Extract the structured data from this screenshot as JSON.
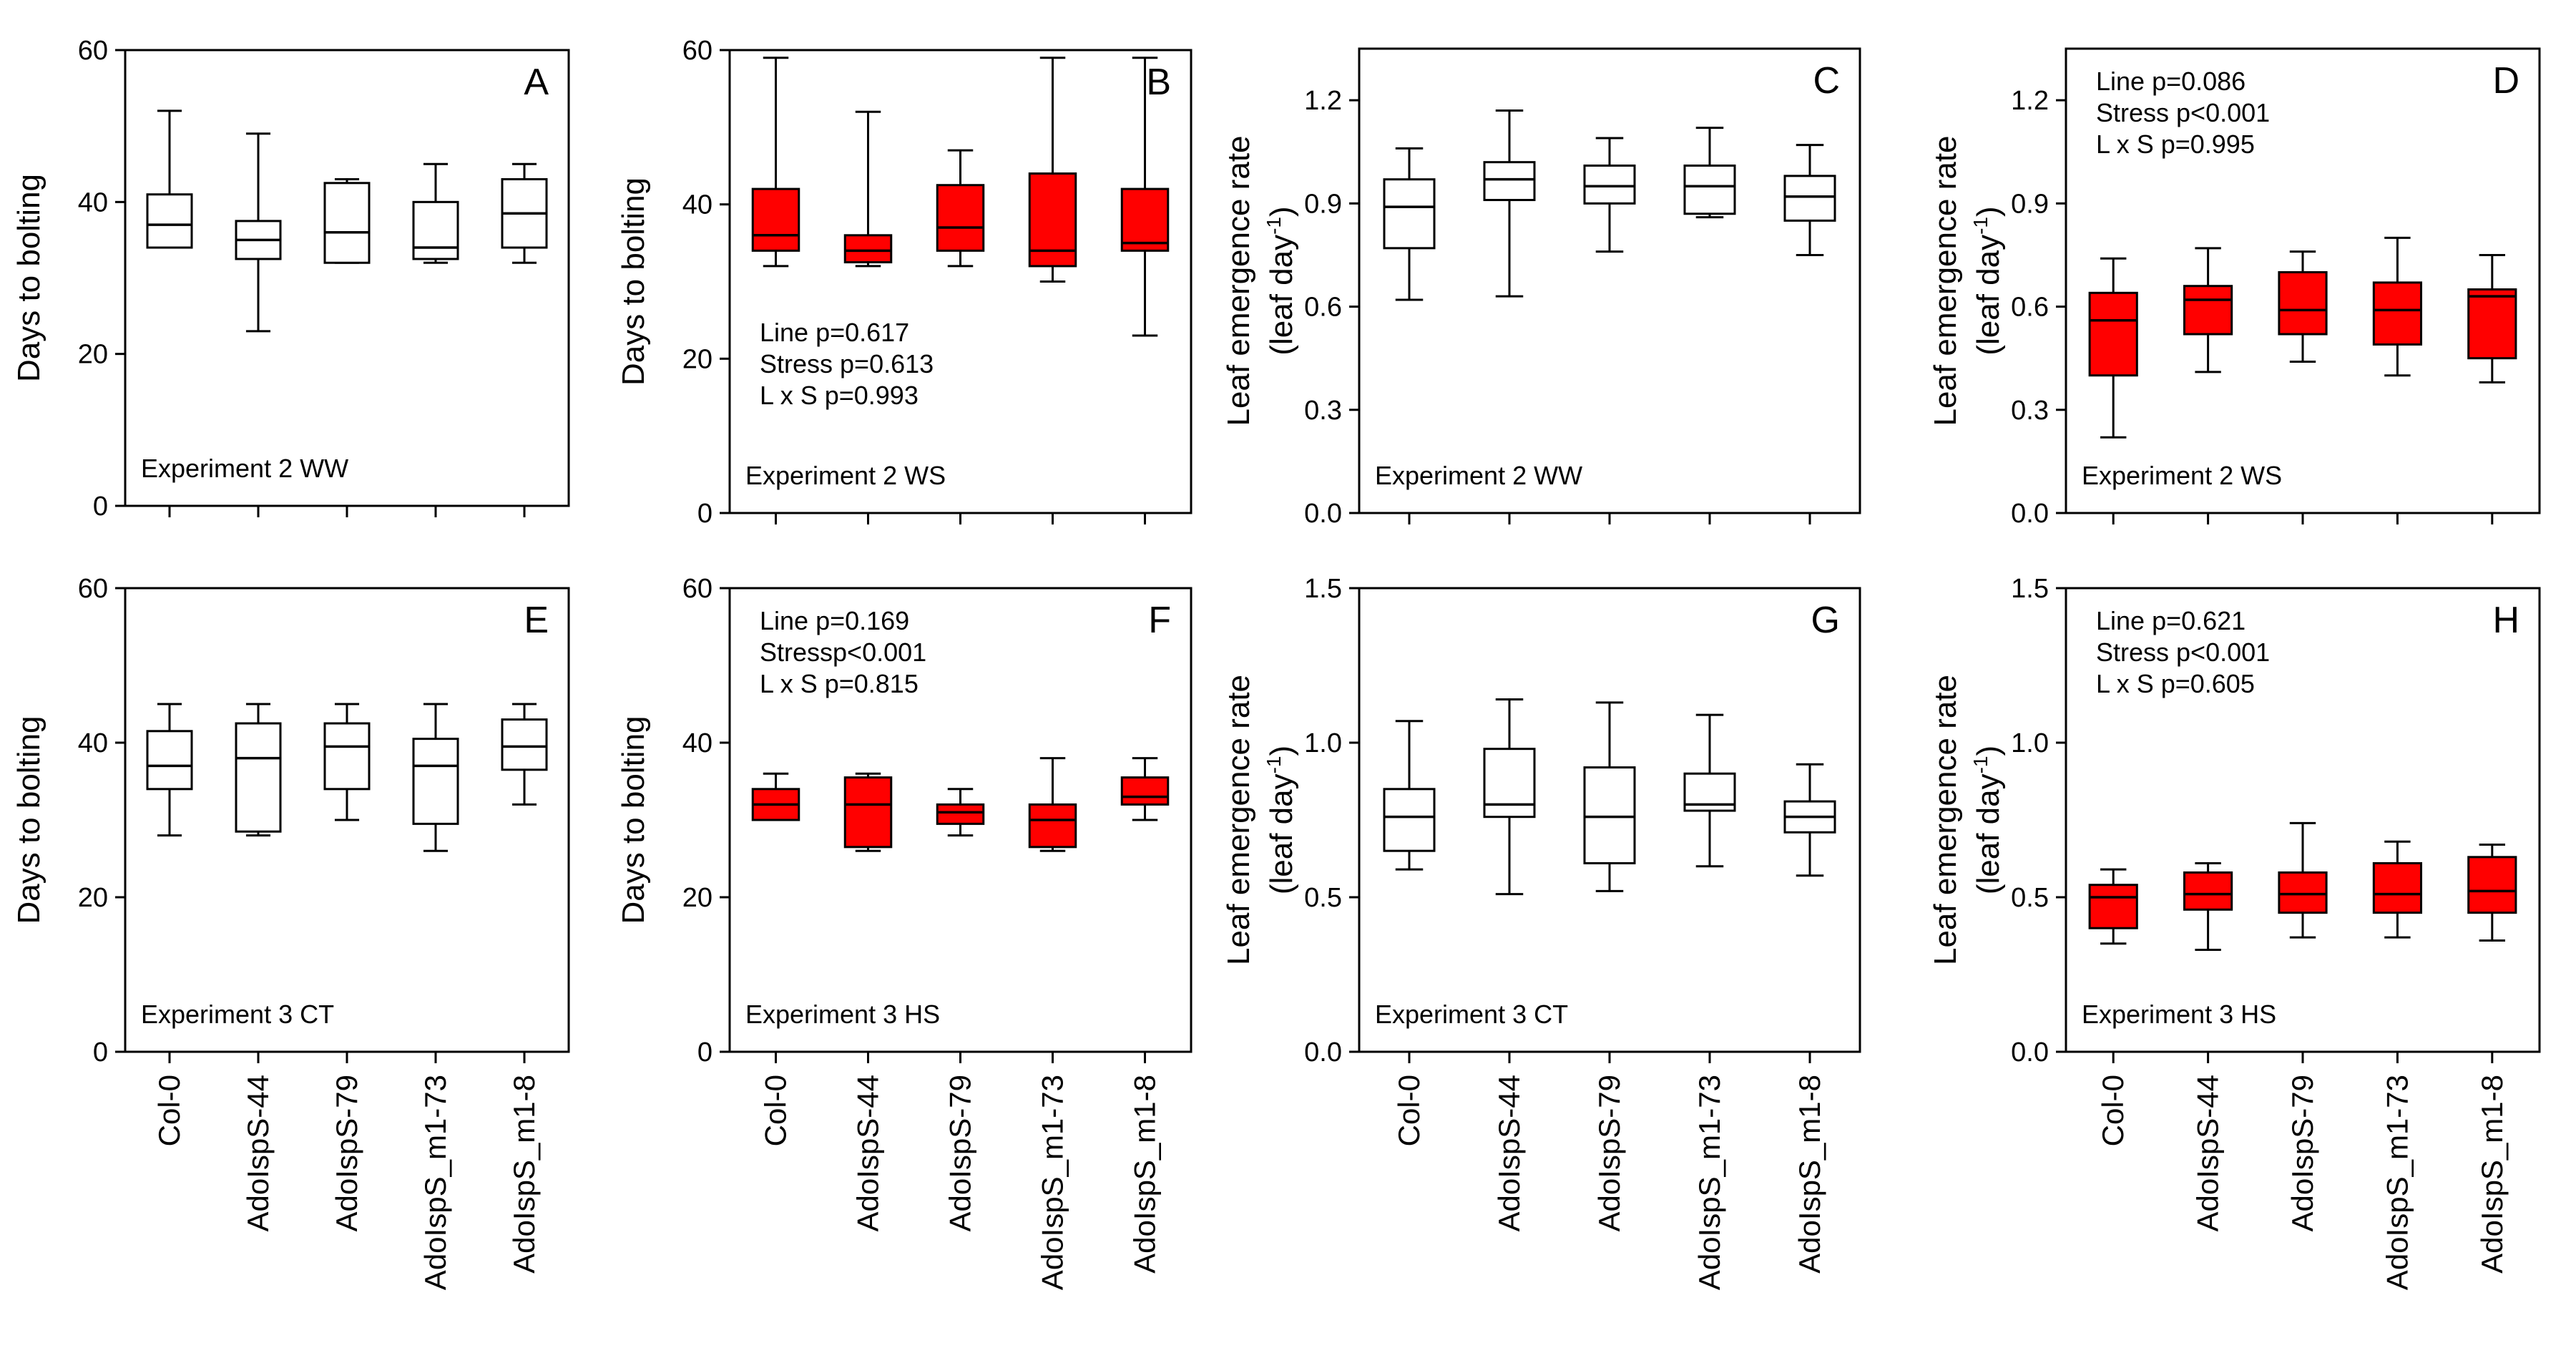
{
  "categories": [
    "Col-0",
    "AdoIspS-44",
    "AdoIspS-79",
    "AdoIspS_m1-73",
    "AdoIspS_m1-8"
  ],
  "colors": {
    "stress_fill": "#ff0000",
    "control_fill": "#ffffff",
    "line": "#000000"
  },
  "chart_data": [
    {
      "type": "box",
      "panel": "A",
      "letter": "A",
      "ylabel": "Days to bolting",
      "ylabel2": "",
      "ylim": [
        0,
        60
      ],
      "yticks": [
        0,
        20,
        40,
        60
      ],
      "yticklabels": [
        "0",
        "20",
        "40",
        "60"
      ],
      "caption": "Experiment 2 WW",
      "stats": [],
      "stats_position": "none",
      "fill": "white",
      "boxes": [
        {
          "category": "Col-0",
          "min": 34,
          "q1": 34,
          "median": 37,
          "q3": 41,
          "max": 52
        },
        {
          "category": "AdoIspS-44",
          "min": 23,
          "q1": 32.5,
          "median": 35,
          "q3": 37.5,
          "max": 49
        },
        {
          "category": "AdoIspS-79",
          "min": 32,
          "q1": 32,
          "median": 36,
          "q3": 42.5,
          "max": 43
        },
        {
          "category": "AdoIspS_m1-73",
          "min": 32,
          "q1": 32.5,
          "median": 34,
          "q3": 40,
          "max": 45
        },
        {
          "category": "AdoIspS_m1-8",
          "min": 32,
          "q1": 34,
          "median": 38.5,
          "q3": 43,
          "max": 45
        }
      ]
    },
    {
      "type": "box",
      "panel": "B",
      "letter": "B",
      "ylabel": "Days to bolting",
      "ylabel2": "",
      "ylim": [
        0,
        60
      ],
      "yticks": [
        0,
        20,
        40,
        60
      ],
      "yticklabels": [
        "0",
        "20",
        "40",
        "60"
      ],
      "caption": "Experiment 2 WS",
      "stats": [
        "Line p=0.617",
        "Stress p=0.613",
        "L x S p=0.993"
      ],
      "stats_position": "bottom-left",
      "fill": "red",
      "boxes": [
        {
          "category": "Col-0",
          "min": 32,
          "q1": 34,
          "median": 36,
          "q3": 42,
          "max": 59
        },
        {
          "category": "AdoIspS-44",
          "min": 32,
          "q1": 32.5,
          "median": 34,
          "q3": 36,
          "max": 52
        },
        {
          "category": "AdoIspS-79",
          "min": 32,
          "q1": 34,
          "median": 37,
          "q3": 42.5,
          "max": 47
        },
        {
          "category": "AdoIspS_m1-73",
          "min": 30,
          "q1": 32,
          "median": 34,
          "q3": 44,
          "max": 59
        },
        {
          "category": "AdoIspS_m1-8",
          "min": 23,
          "q1": 34,
          "median": 35,
          "q3": 42,
          "max": 59
        }
      ]
    },
    {
      "type": "box",
      "panel": "C",
      "letter": "C",
      "ylabel": "Leaf emergence rate",
      "ylabel2": "(leaf day",
      "ylim": [
        0,
        1.35
      ],
      "yticks": [
        0,
        0.3,
        0.6,
        0.9,
        1.2
      ],
      "yticklabels": [
        "0.0",
        "0.3",
        "0.6",
        "0.9",
        "1.2"
      ],
      "caption": "Experiment 2 WW",
      "stats": [],
      "stats_position": "none",
      "fill": "white",
      "boxes": [
        {
          "category": "Col-0",
          "min": 0.62,
          "q1": 0.77,
          "median": 0.89,
          "q3": 0.97,
          "max": 1.06
        },
        {
          "category": "AdoIspS-44",
          "min": 0.63,
          "q1": 0.91,
          "median": 0.97,
          "q3": 1.02,
          "max": 1.17
        },
        {
          "category": "AdoIspS-79",
          "min": 0.76,
          "q1": 0.9,
          "median": 0.95,
          "q3": 1.01,
          "max": 1.09
        },
        {
          "category": "AdoIspS_m1-73",
          "min": 0.86,
          "q1": 0.87,
          "median": 0.95,
          "q3": 1.01,
          "max": 1.12
        },
        {
          "category": "AdoIspS_m1-8",
          "min": 0.75,
          "q1": 0.85,
          "median": 0.92,
          "q3": 0.98,
          "max": 1.07
        }
      ]
    },
    {
      "type": "box",
      "panel": "D",
      "letter": "D",
      "ylabel": "Leaf emergence rate",
      "ylabel2": "(leaf day",
      "ylim": [
        0,
        1.35
      ],
      "yticks": [
        0,
        0.3,
        0.6,
        0.9,
        1.2
      ],
      "yticklabels": [
        "0.0",
        "0.3",
        "0.6",
        "0.9",
        "1.2"
      ],
      "caption": "Experiment 2 WS",
      "stats": [
        "Line p=0.086",
        "Stress p<0.001",
        "L x S p=0.995"
      ],
      "stats_position": "top-left",
      "fill": "red",
      "boxes": [
        {
          "category": "Col-0",
          "min": 0.22,
          "q1": 0.4,
          "median": 0.56,
          "q3": 0.64,
          "max": 0.74
        },
        {
          "category": "AdoIspS-44",
          "min": 0.41,
          "q1": 0.52,
          "median": 0.62,
          "q3": 0.66,
          "max": 0.77
        },
        {
          "category": "AdoIspS-79",
          "min": 0.44,
          "q1": 0.52,
          "median": 0.59,
          "q3": 0.7,
          "max": 0.76
        },
        {
          "category": "AdoIspS_m1-73",
          "min": 0.4,
          "q1": 0.49,
          "median": 0.59,
          "q3": 0.67,
          "max": 0.8
        },
        {
          "category": "AdoIspS_m1-8",
          "min": 0.38,
          "q1": 0.45,
          "median": 0.63,
          "q3": 0.65,
          "max": 0.75
        }
      ]
    },
    {
      "type": "box",
      "panel": "E",
      "letter": "E",
      "ylabel": "Days to bolting",
      "ylabel2": "",
      "ylim": [
        0,
        60
      ],
      "yticks": [
        0,
        20,
        40,
        60
      ],
      "yticklabels": [
        "0",
        "20",
        "40",
        "60"
      ],
      "caption": "Experiment 3 CT",
      "stats": [],
      "stats_position": "none",
      "fill": "white",
      "boxes": [
        {
          "category": "Col-0",
          "min": 28,
          "q1": 34,
          "median": 37,
          "q3": 41.5,
          "max": 45
        },
        {
          "category": "AdoIspS-44",
          "min": 28,
          "q1": 28.5,
          "median": 38,
          "q3": 42.5,
          "max": 45
        },
        {
          "category": "AdoIspS-79",
          "min": 30,
          "q1": 34,
          "median": 39.5,
          "q3": 42.5,
          "max": 45
        },
        {
          "category": "AdoIspS_m1-73",
          "min": 26,
          "q1": 29.5,
          "median": 37,
          "q3": 40.5,
          "max": 45
        },
        {
          "category": "AdoIspS_m1-8",
          "min": 32,
          "q1": 36.5,
          "median": 39.5,
          "q3": 43,
          "max": 45
        }
      ]
    },
    {
      "type": "box",
      "panel": "F",
      "letter": "F",
      "ylabel": "Days to bolting",
      "ylabel2": "",
      "ylim": [
        0,
        60
      ],
      "yticks": [
        0,
        20,
        40,
        60
      ],
      "yticklabels": [
        "0",
        "20",
        "40",
        "60"
      ],
      "caption": "Experiment 3 HS",
      "stats": [
        "Line p=0.169",
        "Stressp<0.001",
        "L x S p=0.815"
      ],
      "stats_position": "top-left",
      "fill": "red",
      "boxes": [
        {
          "category": "Col-0",
          "min": 30,
          "q1": 30,
          "median": 32,
          "q3": 34,
          "max": 36
        },
        {
          "category": "AdoIspS-44",
          "min": 26,
          "q1": 26.5,
          "median": 32,
          "q3": 35.5,
          "max": 36
        },
        {
          "category": "AdoIspS-79",
          "min": 28,
          "q1": 29.5,
          "median": 31,
          "q3": 32,
          "max": 34
        },
        {
          "category": "AdoIspS_m1-73",
          "min": 26,
          "q1": 26.5,
          "median": 30,
          "q3": 32,
          "max": 38
        },
        {
          "category": "AdoIspS_m1-8",
          "min": 30,
          "q1": 32,
          "median": 33,
          "q3": 35.5,
          "max": 38
        }
      ]
    },
    {
      "type": "box",
      "panel": "G",
      "letter": "G",
      "ylabel": "Leaf emergence rate",
      "ylabel2": "(leaf day",
      "ylim": [
        0,
        1.5
      ],
      "yticks": [
        0,
        0.5,
        1.0,
        1.5
      ],
      "yticklabels": [
        "0.0",
        "0.5",
        "1.0",
        "1.5"
      ],
      "caption": "Experiment 3 CT",
      "stats": [],
      "stats_position": "none",
      "fill": "white",
      "boxes": [
        {
          "category": "Col-0",
          "min": 0.59,
          "q1": 0.65,
          "median": 0.76,
          "q3": 0.85,
          "max": 1.07
        },
        {
          "category": "AdoIspS-44",
          "min": 0.51,
          "q1": 0.76,
          "median": 0.8,
          "q3": 0.98,
          "max": 1.14
        },
        {
          "category": "AdoIspS-79",
          "min": 0.52,
          "q1": 0.61,
          "median": 0.76,
          "q3": 0.92,
          "max": 1.13
        },
        {
          "category": "AdoIspS_m1-73",
          "min": 0.6,
          "q1": 0.78,
          "median": 0.8,
          "q3": 0.9,
          "max": 1.09
        },
        {
          "category": "AdoIspS_m1-8",
          "min": 0.57,
          "q1": 0.71,
          "median": 0.76,
          "q3": 0.81,
          "max": 0.93
        }
      ]
    },
    {
      "type": "box",
      "panel": "H",
      "letter": "H",
      "ylabel": "Leaf emergence rate",
      "ylabel2": "(leaf day",
      "ylim": [
        0,
        1.5
      ],
      "yticks": [
        0,
        0.5,
        1.0,
        1.5
      ],
      "yticklabels": [
        "0.0",
        "0.5",
        "1.0",
        "1.5"
      ],
      "caption": "Experiment 3 HS",
      "stats": [
        "Line p=0.621",
        "Stress p<0.001",
        "L x S p=0.605"
      ],
      "stats_position": "top-left",
      "fill": "red",
      "boxes": [
        {
          "category": "Col-0",
          "min": 0.35,
          "q1": 0.4,
          "median": 0.5,
          "q3": 0.54,
          "max": 0.59
        },
        {
          "category": "AdoIspS-44",
          "min": 0.33,
          "q1": 0.46,
          "median": 0.51,
          "q3": 0.58,
          "max": 0.61
        },
        {
          "category": "AdoIspS-79",
          "min": 0.37,
          "q1": 0.45,
          "median": 0.51,
          "q3": 0.58,
          "max": 0.74
        },
        {
          "category": "AdoIspS_m1-73",
          "min": 0.37,
          "q1": 0.45,
          "median": 0.51,
          "q3": 0.61,
          "max": 0.68
        },
        {
          "category": "AdoIspS_m1-8",
          "min": 0.36,
          "q1": 0.45,
          "median": 0.52,
          "q3": 0.63,
          "max": 0.67
        }
      ]
    }
  ]
}
